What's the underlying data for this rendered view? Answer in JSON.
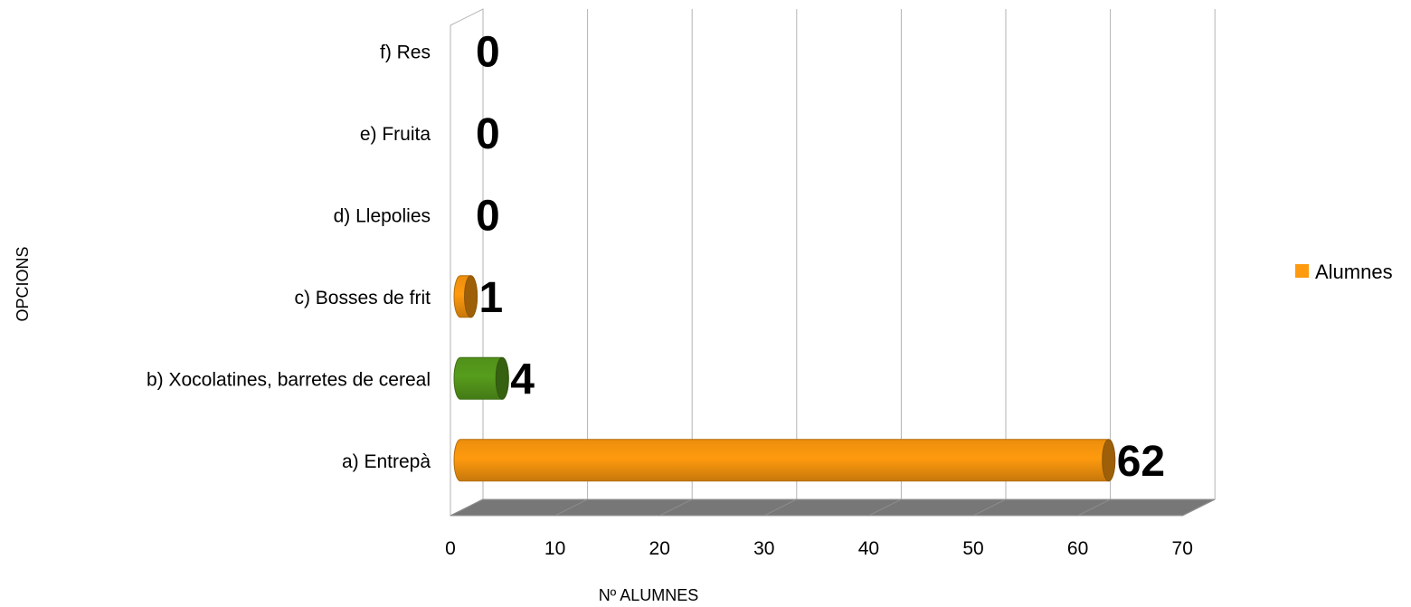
{
  "chart_data": {
    "type": "bar",
    "orientation": "horizontal",
    "style": "3d-cylinder",
    "categories": [
      "a) Entrepà",
      "b) Xocolatines, barretes de cereal",
      "c) Bosses de frit",
      "d) Llepolies",
      "e) Fruita",
      "f) Res"
    ],
    "series": [
      {
        "name": "Alumnes",
        "values": [
          62,
          4,
          1,
          0,
          0,
          0
        ]
      }
    ],
    "bar_colors": [
      "#ff9a0e",
      "#579d1c",
      "#ff9a0e",
      "#ff9a0e",
      "#ff9a0e",
      "#ff9a0e"
    ],
    "xlabel": "Nº ALUMNES",
    "ylabel": "OPCIONS",
    "xlim": [
      0,
      70
    ],
    "xticks": [
      0,
      10,
      20,
      30,
      40,
      50,
      60,
      70
    ],
    "grid": true,
    "legend": {
      "position": "right",
      "label": "Alumnes",
      "color": "#ff9a0e"
    }
  }
}
